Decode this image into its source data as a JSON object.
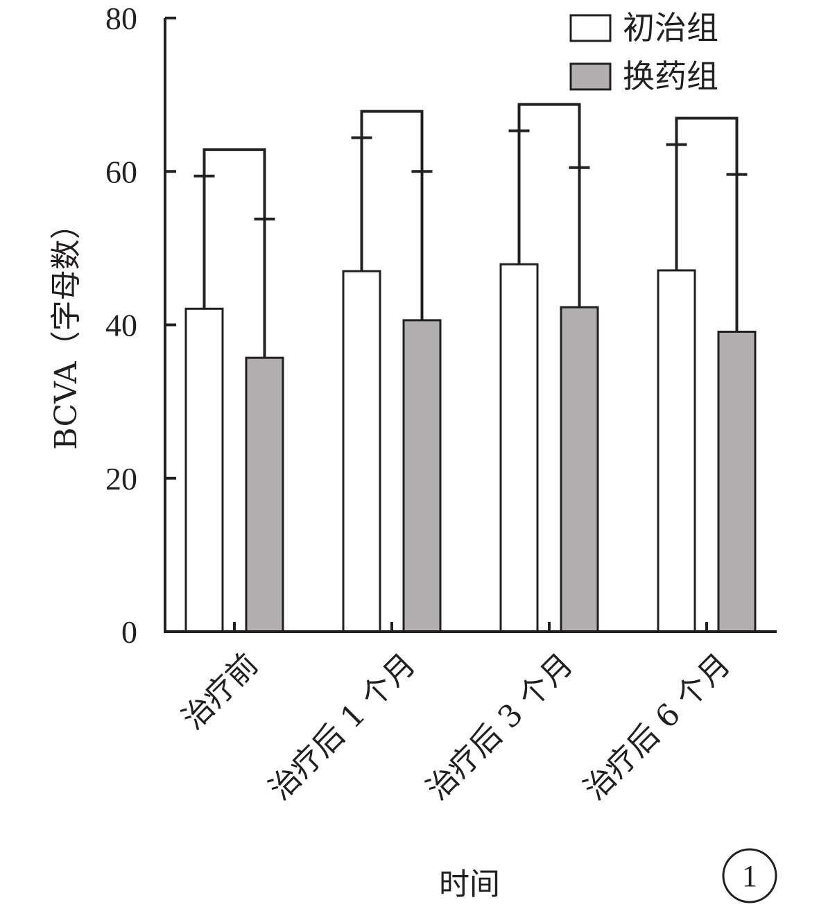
{
  "chart_data": {
    "type": "bar",
    "categories": [
      "治疗前",
      "治疗后 1 个月",
      "治疗后 3 个月",
      "治疗后 6 个月"
    ],
    "series": [
      {
        "name": "初治组",
        "values": [
          42.1,
          47.0,
          47.9,
          47.1
        ],
        "error": [
          17.3,
          17.4,
          17.4,
          16.4
        ],
        "color": "#ffffff"
      },
      {
        "name": "换药组",
        "values": [
          35.7,
          40.6,
          42.3,
          39.1
        ],
        "error": [
          18.1,
          19.4,
          18.2,
          20.5
        ],
        "color": "#b1afb0"
      }
    ],
    "xlabel": "时间",
    "ylabel": "BCVA（字母数）",
    "ylim": [
      0,
      80
    ],
    "yticks": [
      0,
      20,
      40,
      60,
      80
    ],
    "panel_label": "1",
    "legend_position": "top-right",
    "significance_brackets": true,
    "grid": false
  }
}
